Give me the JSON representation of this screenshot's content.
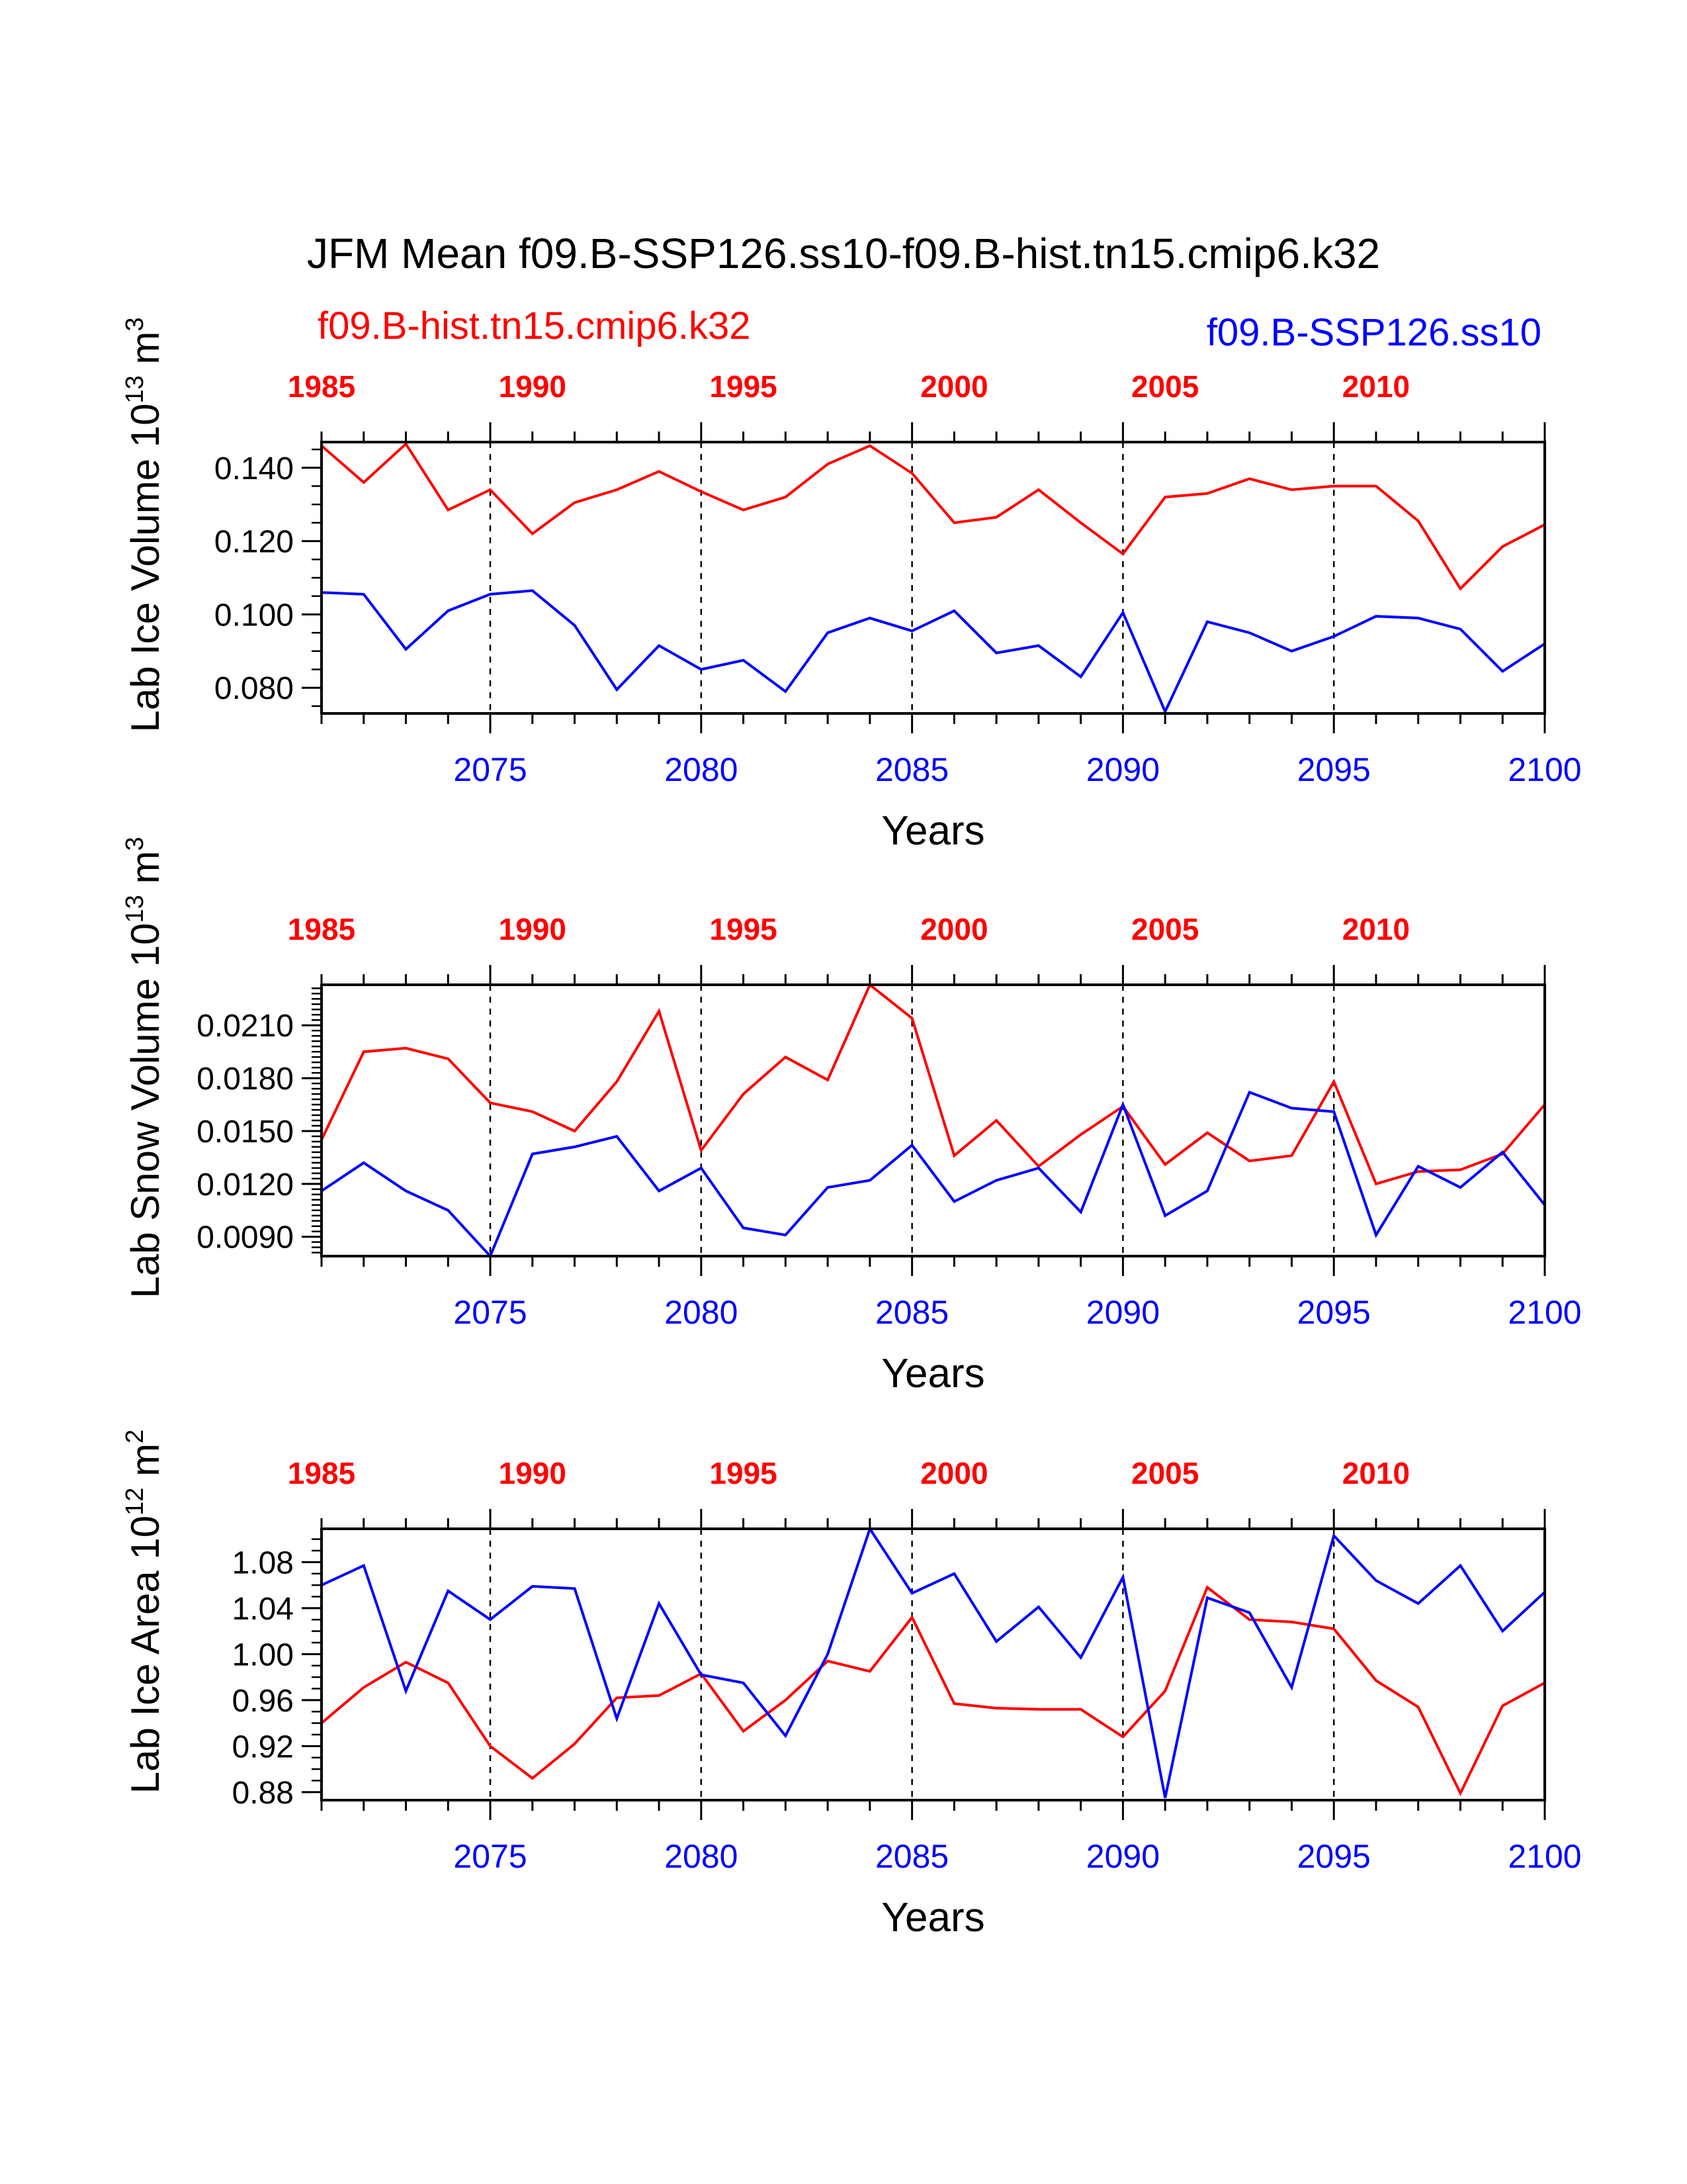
{
  "title": "JFM Mean f09.B-SSP126.ss10-f09.B-hist.tn15.cmip6.k32",
  "legend": {
    "hist_label": "f09.B-hist.tn15.cmip6.k32",
    "ssp_label": "f09.B-SSP126.ss10"
  },
  "colors": {
    "hist": "#ff0000",
    "ssp": "#0000ff",
    "axis": "#000000"
  },
  "chart_data": [
    {
      "type": "line",
      "id": "ice-volume",
      "ylabel": {
        "main": "Lab Ice Volume 10",
        "exp": "13",
        "unit": " m",
        "unit_exp": "3"
      },
      "xlabel": "Years",
      "xlim": [
        2071,
        2100
      ],
      "top_xlim": [
        1985,
        2014
      ],
      "ylim": [
        0.073,
        0.147
      ],
      "yticks": [
        0.08,
        0.1,
        0.12,
        0.14
      ],
      "ytick_labels": [
        "0.080",
        "0.100",
        "0.120",
        "0.140"
      ],
      "yminor": [
        0.075,
        0.085,
        0.09,
        0.095,
        0.105,
        0.11,
        0.115,
        0.125,
        0.13,
        0.135,
        0.145
      ],
      "bottom_ticks": [
        2075,
        2080,
        2085,
        2090,
        2095,
        2100
      ],
      "bottom_tick_labels": [
        "2075",
        "2080",
        "2085",
        "2090",
        "2095",
        "2100"
      ],
      "top_ticks": [
        1985,
        1990,
        1995,
        2000,
        2005,
        2010
      ],
      "top_tick_labels": [
        "1985",
        "1990",
        "1995",
        "2000",
        "2005",
        "2010"
      ],
      "vlines": [
        2075,
        2080,
        2085,
        2090,
        2095
      ],
      "series": [
        {
          "name": "f09.B-hist.tn15.cmip6.k32",
          "color": "red",
          "values": [
            0.146,
            0.136,
            0.1465,
            0.1285,
            0.134,
            0.122,
            0.1305,
            0.134,
            0.139,
            0.1335,
            0.1285,
            0.132,
            0.141,
            0.146,
            0.1385,
            0.125,
            0.1265,
            0.134,
            0.125,
            0.1165,
            0.132,
            0.133,
            0.137,
            0.134,
            0.135,
            0.135,
            0.1255,
            0.107,
            0.1185,
            0.1245
          ]
        },
        {
          "name": "f09.B-SSP126.ss10",
          "color": "blue",
          "values": [
            0.106,
            0.1055,
            0.0905,
            0.101,
            0.1055,
            0.1065,
            0.097,
            0.0795,
            0.0915,
            0.085,
            0.0875,
            0.079,
            0.095,
            0.099,
            0.0955,
            0.101,
            0.0895,
            0.0915,
            0.083,
            0.1005,
            0.0735,
            0.098,
            0.095,
            0.09,
            0.094,
            0.0995,
            0.099,
            0.096,
            0.0845,
            0.092
          ]
        }
      ]
    },
    {
      "type": "line",
      "id": "snow-volume",
      "ylabel": {
        "main": "Lab Snow Volume 10",
        "exp": "13",
        "unit": " m",
        "unit_exp": "3"
      },
      "xlabel": "Years",
      "xlim": [
        2071,
        2100
      ],
      "top_xlim": [
        1985,
        2014
      ],
      "ylim": [
        0.0079,
        0.0233
      ],
      "yticks": [
        0.009,
        0.012,
        0.015,
        0.018,
        0.021
      ],
      "ytick_labels": [
        "0.0090",
        "0.0120",
        "0.0150",
        "0.0180",
        "0.0210"
      ],
      "yminor": [
        0.0081,
        0.0084,
        0.0087,
        0.0093,
        0.0096,
        0.0099,
        0.0102,
        0.0105,
        0.0108,
        0.0111,
        0.0114,
        0.0117,
        0.0123,
        0.0126,
        0.0129,
        0.0132,
        0.0135,
        0.0138,
        0.0141,
        0.0144,
        0.0147,
        0.0153,
        0.0156,
        0.0159,
        0.0162,
        0.0165,
        0.0168,
        0.0171,
        0.0174,
        0.0177,
        0.0183,
        0.0186,
        0.0189,
        0.0192,
        0.0195,
        0.0198,
        0.0201,
        0.0204,
        0.0207,
        0.0213,
        0.0216,
        0.0219,
        0.0222,
        0.0225,
        0.0228,
        0.0231
      ],
      "bottom_ticks": [
        2075,
        2080,
        2085,
        2090,
        2095,
        2100
      ],
      "bottom_tick_labels": [
        "2075",
        "2080",
        "2085",
        "2090",
        "2095",
        "2100"
      ],
      "top_ticks": [
        1985,
        1990,
        1995,
        2000,
        2005,
        2010
      ],
      "top_tick_labels": [
        "1985",
        "1990",
        "1995",
        "2000",
        "2005",
        "2010"
      ],
      "vlines": [
        2075,
        2080,
        2085,
        2090,
        2095
      ],
      "series": [
        {
          "name": "f09.B-hist.tn15.cmip6.k32",
          "color": "red",
          "values": [
            0.0145,
            0.0195,
            0.0197,
            0.0191,
            0.0166,
            0.0161,
            0.015,
            0.0178,
            0.0218,
            0.0139,
            0.0171,
            0.0192,
            0.0179,
            0.0233,
            0.0214,
            0.0136,
            0.0156,
            0.013,
            0.0148,
            0.0164,
            0.0131,
            0.0149,
            0.0133,
            0.0136,
            0.0178,
            0.012,
            0.0127,
            0.0128,
            0.0137,
            0.0165
          ]
        },
        {
          "name": "f09.B-SSP126.ss10",
          "color": "blue",
          "values": [
            0.0116,
            0.0132,
            0.0116,
            0.0105,
            0.0079,
            0.0137,
            0.0141,
            0.0147,
            0.0116,
            0.0129,
            0.0095,
            0.0091,
            0.0118,
            0.0122,
            0.0142,
            0.011,
            0.0122,
            0.0129,
            0.0104,
            0.0165,
            0.0102,
            0.0116,
            0.0172,
            0.0163,
            0.0161,
            0.0091,
            0.013,
            0.0118,
            0.0138,
            0.0108
          ]
        }
      ]
    },
    {
      "type": "line",
      "id": "ice-area",
      "ylabel": {
        "main": "Lab Ice Area 10",
        "exp": "12",
        "unit": " m",
        "unit_exp": "2"
      },
      "xlabel": "Years",
      "xlim": [
        2071,
        2100
      ],
      "top_xlim": [
        1985,
        2014
      ],
      "ylim": [
        0.873,
        1.109
      ],
      "yticks": [
        0.88,
        0.92,
        0.96,
        1.0,
        1.04,
        1.08
      ],
      "ytick_labels": [
        "0.88",
        "0.92",
        "0.96",
        "1.00",
        "1.04",
        "1.08"
      ],
      "yminor": [
        0.89,
        0.9,
        0.91,
        0.93,
        0.94,
        0.95,
        0.97,
        0.98,
        0.99,
        1.01,
        1.02,
        1.03,
        1.05,
        1.06,
        1.07,
        1.09,
        1.1
      ],
      "bottom_ticks": [
        2075,
        2080,
        2085,
        2090,
        2095,
        2100
      ],
      "bottom_tick_labels": [
        "2075",
        "2080",
        "2085",
        "2090",
        "2095",
        "2100"
      ],
      "top_ticks": [
        1985,
        1990,
        1995,
        2000,
        2005,
        2010
      ],
      "top_tick_labels": [
        "1985",
        "1990",
        "1995",
        "2000",
        "2005",
        "2010"
      ],
      "vlines": [
        2075,
        2080,
        2085,
        2090,
        2095
      ],
      "series": [
        {
          "name": "f09.B-hist.tn15.cmip6.k32",
          "color": "red",
          "values": [
            0.94,
            0.971,
            0.993,
            0.975,
            0.92,
            0.892,
            0.922,
            0.962,
            0.964,
            0.983,
            0.933,
            0.96,
            0.994,
            0.985,
            1.032,
            0.957,
            0.953,
            0.952,
            0.952,
            0.928,
            0.968,
            1.058,
            1.03,
            1.028,
            1.022,
            0.977,
            0.954,
            0.879,
            0.955,
            0.975
          ]
        },
        {
          "name": "f09.B-SSP126.ss10",
          "color": "blue",
          "values": [
            1.06,
            1.077,
            0.968,
            1.055,
            1.03,
            1.059,
            1.057,
            0.944,
            1.044,
            0.982,
            0.975,
            0.929,
            1.0,
            1.109,
            1.053,
            1.07,
            1.011,
            1.041,
            0.997,
            1.067,
            0.875,
            1.049,
            1.036,
            0.971,
            1.103,
            1.064,
            1.044,
            1.077,
            1.02,
            1.054
          ]
        }
      ]
    }
  ]
}
